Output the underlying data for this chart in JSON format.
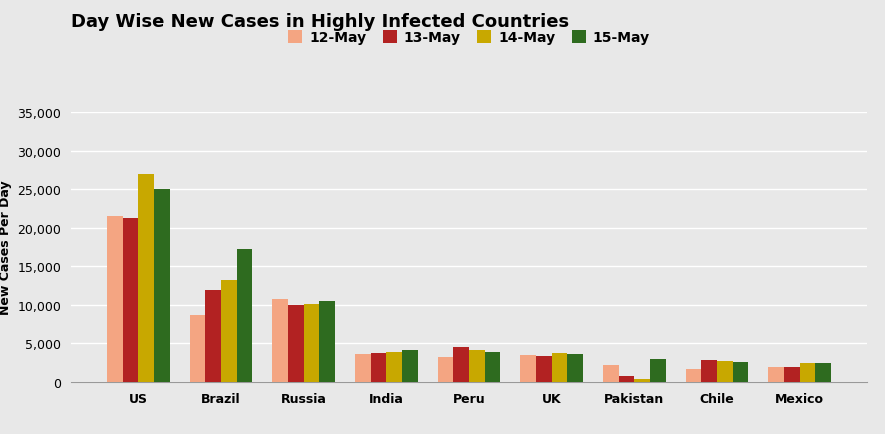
{
  "title": "Day Wise New Cases in Highly Infected Countries",
  "ylabel": "New Cases Per Day",
  "categories": [
    "US",
    "Brazil",
    "Russia",
    "India",
    "Peru",
    "UK",
    "Pakistan",
    "Chile",
    "Mexico"
  ],
  "series": {
    "12-May": [
      21500,
      8700,
      10800,
      3600,
      3200,
      3500,
      2200,
      1600,
      1900
    ],
    "13-May": [
      21200,
      11900,
      10000,
      3700,
      4500,
      3300,
      700,
      2800,
      1900
    ],
    "14-May": [
      27000,
      13200,
      10100,
      3900,
      4100,
      3700,
      400,
      2700,
      2400
    ],
    "15-May": [
      25000,
      17200,
      10500,
      4100,
      3900,
      3600,
      3000,
      2600,
      2500
    ]
  },
  "colors": {
    "12-May": "#F4A582",
    "13-May": "#B22222",
    "14-May": "#C8A800",
    "15-May": "#2E6B1F"
  },
  "legend_labels": [
    "12-May",
    "13-May",
    "14-May",
    "15-May"
  ],
  "ylim": [
    0,
    35000
  ],
  "yticks": [
    0,
    5000,
    10000,
    15000,
    20000,
    25000,
    30000,
    35000
  ],
  "background_color": "#E8E8E8",
  "grid_color": "#FFFFFF",
  "title_fontsize": 13,
  "label_fontsize": 9,
  "tick_fontsize": 9,
  "bar_width": 0.19
}
